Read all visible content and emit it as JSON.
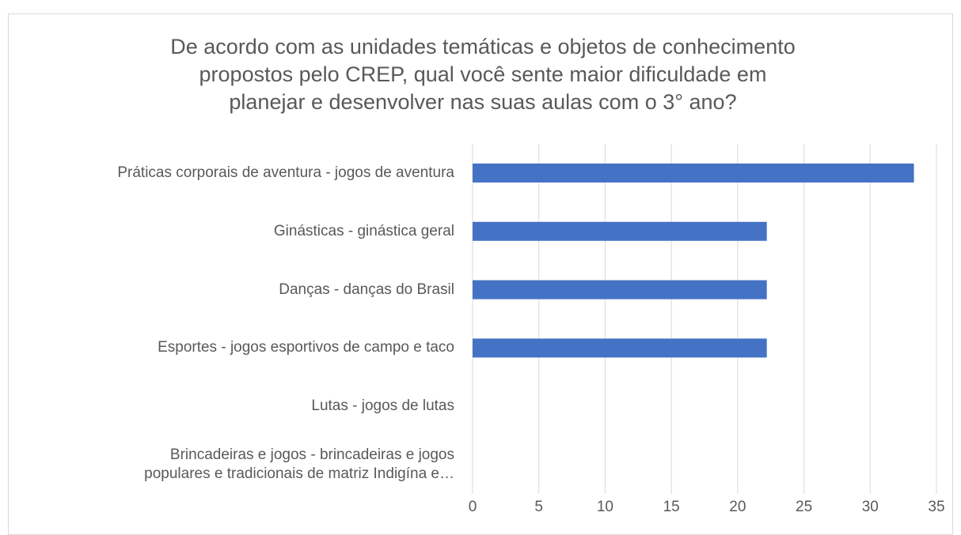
{
  "chart_data": {
    "type": "bar",
    "orientation": "horizontal",
    "title": "De acordo com as unidades temáticas e objetos de conhecimento\npropostos pelo CREP, qual você sente maior dificuldade em\nplanejar e desenvolver nas suas aulas com o 3° ano?",
    "categories": [
      "Práticas corporais de aventura - jogos de aventura",
      "Ginásticas - ginástica geral",
      "Danças - danças do Brasil",
      "Esportes - jogos esportivos de campo e taco",
      "Lutas - jogos de lutas",
      "Brincadeiras e jogos - brincadeiras e jogos\npopulares e tradicionais de matriz Indigína e…"
    ],
    "values": [
      33.3,
      22.2,
      22.2,
      22.2,
      0,
      0
    ],
    "color": "#4472c4",
    "xlim": [
      0,
      35
    ],
    "xticks": [
      0,
      5,
      10,
      15,
      20,
      25,
      30,
      35
    ],
    "grid": true
  }
}
